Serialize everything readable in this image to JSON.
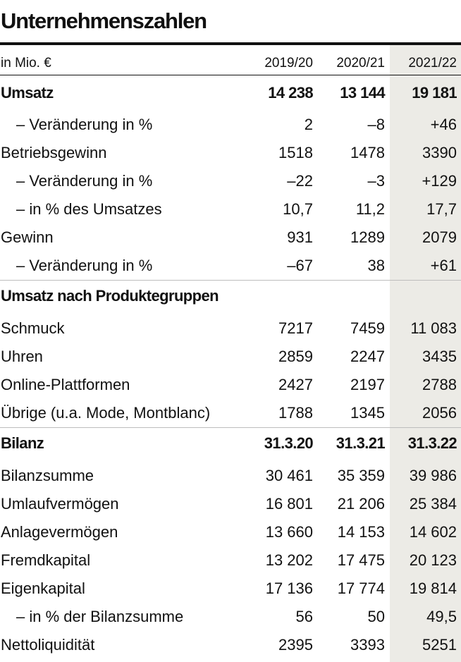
{
  "title": "Unternehmenszahlen",
  "header": {
    "unit": "in Mio. €",
    "col1": "2019/20",
    "col2": "2020/21",
    "col3": "2021/22"
  },
  "rows": [
    {
      "label": "Umsatz",
      "v1": "14 238",
      "v2": "13 144",
      "v3": "19 181"
    },
    {
      "label": "– Veränderung in %",
      "v1": "2",
      "v2": "–8",
      "v3": "+46"
    },
    {
      "label": "Betriebsgewinn",
      "v1": "1518",
      "v2": "1478",
      "v3": "3390"
    },
    {
      "label": "– Veränderung in %",
      "v1": "–22",
      "v2": "–3",
      "v3": "+129"
    },
    {
      "label": "– in % des Umsatzes",
      "v1": "10,7",
      "v2": "11,2",
      "v3": "17,7"
    },
    {
      "label": "Gewinn",
      "v1": "931",
      "v2": "1289",
      "v3": "2079"
    },
    {
      "label": "– Veränderung in %",
      "v1": "–67",
      "v2": "38",
      "v3": "+61"
    },
    {
      "label": "Umsatz nach Produktegruppen",
      "v1": "",
      "v2": "",
      "v3": ""
    },
    {
      "label": "Schmuck",
      "v1": "7217",
      "v2": "7459",
      "v3": "11 083"
    },
    {
      "label": "Uhren",
      "v1": "2859",
      "v2": "2247",
      "v3": "3435"
    },
    {
      "label": "Online-Plattformen",
      "v1": "2427",
      "v2": "2197",
      "v3": "2788"
    },
    {
      "label": "Übrige (u.a. Mode, Montblanc)",
      "v1": "1788",
      "v2": "1345",
      "v3": "2056"
    },
    {
      "label": "Bilanz",
      "v1": "31.3.20",
      "v2": "31.3.21",
      "v3": "31.3.22"
    },
    {
      "label": "Bilanzsumme",
      "v1": "30 461",
      "v2": "35 359",
      "v3": "39 986"
    },
    {
      "label": "Umlaufvermögen",
      "v1": "16 801",
      "v2": "21 206",
      "v3": "25 384"
    },
    {
      "label": "Anlagevermögen",
      "v1": "13 660",
      "v2": "14 153",
      "v3": "14 602"
    },
    {
      "label": "Fremdkapital",
      "v1": "13 202",
      "v2": "17 475",
      "v3": "20 123"
    },
    {
      "label": "Eigenkapital",
      "v1": "17 136",
      "v2": "17 774",
      "v3": "19 814"
    },
    {
      "label": "– in % der Bilanzsumme",
      "v1": "56",
      "v2": "50",
      "v3": "49,5"
    },
    {
      "label": "Nettoliquidität",
      "v1": "2395",
      "v2": "3393",
      "v3": "5251"
    }
  ]
}
